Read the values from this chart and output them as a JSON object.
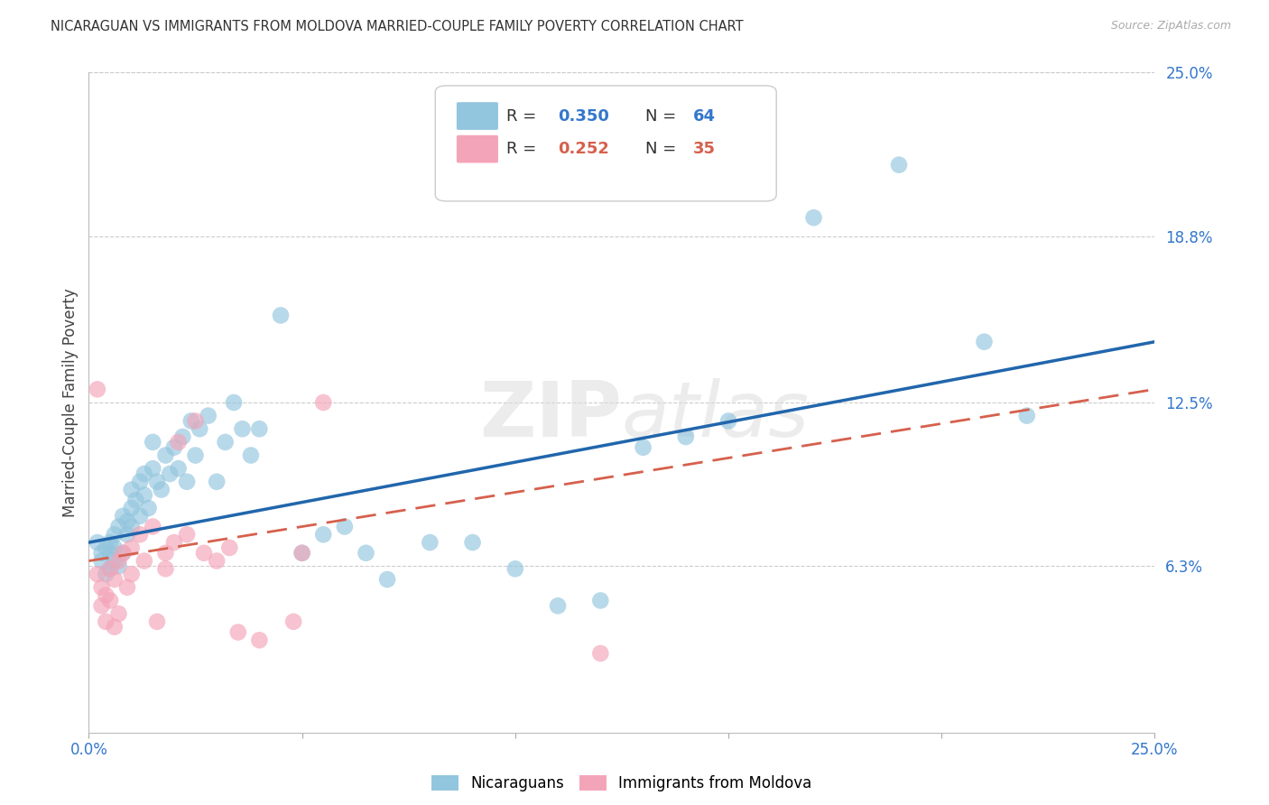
{
  "title": "NICARAGUAN VS IMMIGRANTS FROM MOLDOVA MARRIED-COUPLE FAMILY POVERTY CORRELATION CHART",
  "source": "Source: ZipAtlas.com",
  "ylabel": "Married-Couple Family Poverty",
  "x_min": 0.0,
  "x_max": 0.25,
  "y_min": 0.0,
  "y_max": 0.25,
  "y_tick_labels_right": [
    "25.0%",
    "18.8%",
    "12.5%",
    "6.3%"
  ],
  "y_tick_positions_right": [
    0.25,
    0.188,
    0.125,
    0.063
  ],
  "nicaraguan_R": 0.35,
  "nicaraguan_N": 64,
  "moldova_R": 0.252,
  "moldova_N": 35,
  "blue_color": "#92c5de",
  "pink_color": "#f4a4b8",
  "blue_line_color": "#2166ac",
  "pink_line_color": "#d6604d",
  "watermark": "ZIPatlas",
  "legend_label_blue": "Nicaraguans",
  "legend_label_pink": "Immigrants from Moldova",
  "blue_x": [
    0.002,
    0.003,
    0.003,
    0.004,
    0.004,
    0.005,
    0.005,
    0.005,
    0.006,
    0.006,
    0.006,
    0.007,
    0.007,
    0.008,
    0.008,
    0.009,
    0.009,
    0.01,
    0.01,
    0.01,
    0.011,
    0.012,
    0.012,
    0.013,
    0.013,
    0.014,
    0.015,
    0.015,
    0.016,
    0.017,
    0.018,
    0.019,
    0.02,
    0.021,
    0.022,
    0.023,
    0.024,
    0.025,
    0.026,
    0.028,
    0.03,
    0.032,
    0.034,
    0.036,
    0.038,
    0.04,
    0.045,
    0.05,
    0.055,
    0.06,
    0.065,
    0.07,
    0.08,
    0.09,
    0.1,
    0.11,
    0.12,
    0.13,
    0.14,
    0.15,
    0.17,
    0.19,
    0.21,
    0.22
  ],
  "blue_y": [
    0.072,
    0.065,
    0.068,
    0.07,
    0.06,
    0.072,
    0.068,
    0.062,
    0.075,
    0.07,
    0.065,
    0.078,
    0.063,
    0.082,
    0.068,
    0.08,
    0.075,
    0.085,
    0.092,
    0.078,
    0.088,
    0.095,
    0.082,
    0.09,
    0.098,
    0.085,
    0.1,
    0.11,
    0.095,
    0.092,
    0.105,
    0.098,
    0.108,
    0.1,
    0.112,
    0.095,
    0.118,
    0.105,
    0.115,
    0.12,
    0.095,
    0.11,
    0.125,
    0.115,
    0.105,
    0.115,
    0.158,
    0.068,
    0.075,
    0.078,
    0.068,
    0.058,
    0.072,
    0.072,
    0.062,
    0.048,
    0.05,
    0.108,
    0.112,
    0.118,
    0.195,
    0.215,
    0.148,
    0.12
  ],
  "pink_x": [
    0.002,
    0.003,
    0.003,
    0.004,
    0.004,
    0.005,
    0.005,
    0.006,
    0.006,
    0.007,
    0.007,
    0.008,
    0.009,
    0.01,
    0.01,
    0.012,
    0.013,
    0.015,
    0.016,
    0.018,
    0.018,
    0.02,
    0.021,
    0.023,
    0.025,
    0.027,
    0.03,
    0.033,
    0.035,
    0.04,
    0.048,
    0.05,
    0.055,
    0.12,
    0.002
  ],
  "pink_y": [
    0.06,
    0.055,
    0.048,
    0.052,
    0.042,
    0.062,
    0.05,
    0.058,
    0.04,
    0.065,
    0.045,
    0.068,
    0.055,
    0.07,
    0.06,
    0.075,
    0.065,
    0.078,
    0.042,
    0.068,
    0.062,
    0.072,
    0.11,
    0.075,
    0.118,
    0.068,
    0.065,
    0.07,
    0.038,
    0.035,
    0.042,
    0.068,
    0.125,
    0.03,
    0.13
  ],
  "blue_line_x0": 0.0,
  "blue_line_y0": 0.072,
  "blue_line_x1": 0.25,
  "blue_line_y1": 0.148,
  "pink_line_x0": 0.0,
  "pink_line_y0": 0.065,
  "pink_line_x1": 0.25,
  "pink_line_y1": 0.13
}
